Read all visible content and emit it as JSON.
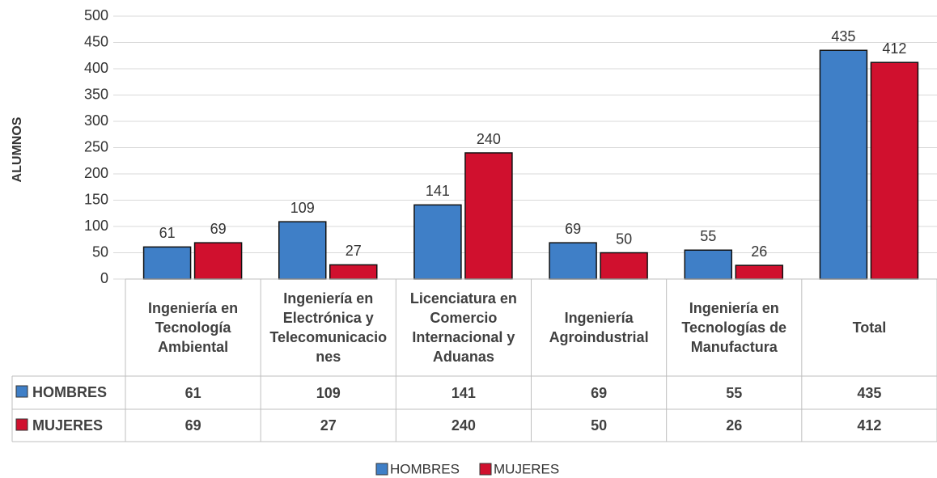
{
  "chart_data": {
    "type": "bar",
    "y_axis_label": "ALUMNOS",
    "categories": [
      "Ingeniería en Tecnología Ambiental",
      "Ingeniería en Electrónica y Telecomunicaciones",
      "Licenciatura en Comercio Internacional y Aduanas",
      "Ingeniería Agroindustrial",
      "Ingeniería en Tecnologías de Manufactura",
      "Total"
    ],
    "series": [
      {
        "name": "HOMBRES",
        "color": "#3f7fc7",
        "values": [
          61,
          109,
          141,
          69,
          55,
          435
        ]
      },
      {
        "name": "MUJERES",
        "color": "#d0102e",
        "values": [
          69,
          27,
          240,
          50,
          26,
          412
        ]
      }
    ],
    "ylim": [
      0,
      500
    ],
    "yticks": [
      0,
      50,
      100,
      150,
      200,
      250,
      300,
      350,
      400,
      450,
      500
    ],
    "grid": true,
    "legend": "bottom",
    "data_table": true
  }
}
